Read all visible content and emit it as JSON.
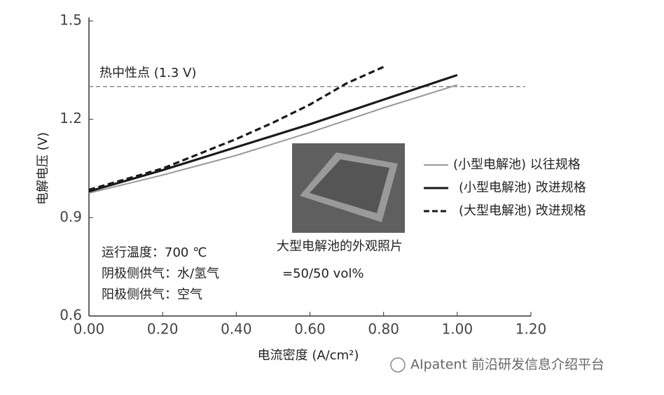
{
  "chart_data": {
    "type": "line",
    "xlabel": "电流密度 (A/cm²)",
    "ylabel": "电解电压 (V)",
    "xlim": [
      0,
      1.2
    ],
    "ylim": [
      0.6,
      1.5
    ],
    "xticks": [
      {
        "value": 0,
        "label": "0.00"
      },
      {
        "value": 0.2,
        "label": "0.20"
      },
      {
        "value": 0.4,
        "label": "0.40"
      },
      {
        "value": 0.6,
        "label": "0.60"
      },
      {
        "value": 0.8,
        "label": "0.80"
      },
      {
        "value": 1.0,
        "label": "1.00"
      },
      {
        "value": 1.2,
        "label": "1.20"
      }
    ],
    "yticks": [
      0.6,
      0.9,
      1.2,
      1.5
    ],
    "grid": false,
    "legend_position": "right",
    "series": [
      {
        "name": "(小型电解池) 以往规格",
        "color": "#999999",
        "style": "solid",
        "x": [
          0,
          0.2,
          0.4,
          0.6,
          0.8,
          1.0
        ],
        "values": [
          0.975,
          1.03,
          1.09,
          1.16,
          1.235,
          1.305
        ]
      },
      {
        "name": "(小型电解池) 改进规格",
        "color": "#1a1a1a",
        "style": "solid",
        "x": [
          0,
          0.2,
          0.4,
          0.6,
          0.8,
          1.0
        ],
        "values": [
          0.98,
          1.045,
          1.115,
          1.185,
          1.26,
          1.335
        ]
      },
      {
        "name": "(大型电解池) 改进规格",
        "color": "#1a1a1a",
        "style": "dashed",
        "x": [
          0,
          0.2,
          0.3,
          0.4,
          0.5,
          0.6,
          0.7,
          0.8
        ],
        "values": [
          0.985,
          1.05,
          1.095,
          1.14,
          1.19,
          1.245,
          1.31,
          1.36
        ]
      }
    ],
    "reference_line": {
      "value": 1.3,
      "label": "热中性点 (1.3 V)",
      "color": "#888888"
    },
    "photo_caption": "大型电解池的外观照片",
    "annotations": [
      "运行温度：700 ℃",
      "阴极侧供气：水/氢气",
      "=50/50 vol%",
      "阳极侧供气：空气"
    ],
    "watermark": "AIpatent 前沿研发信息介绍平台"
  }
}
